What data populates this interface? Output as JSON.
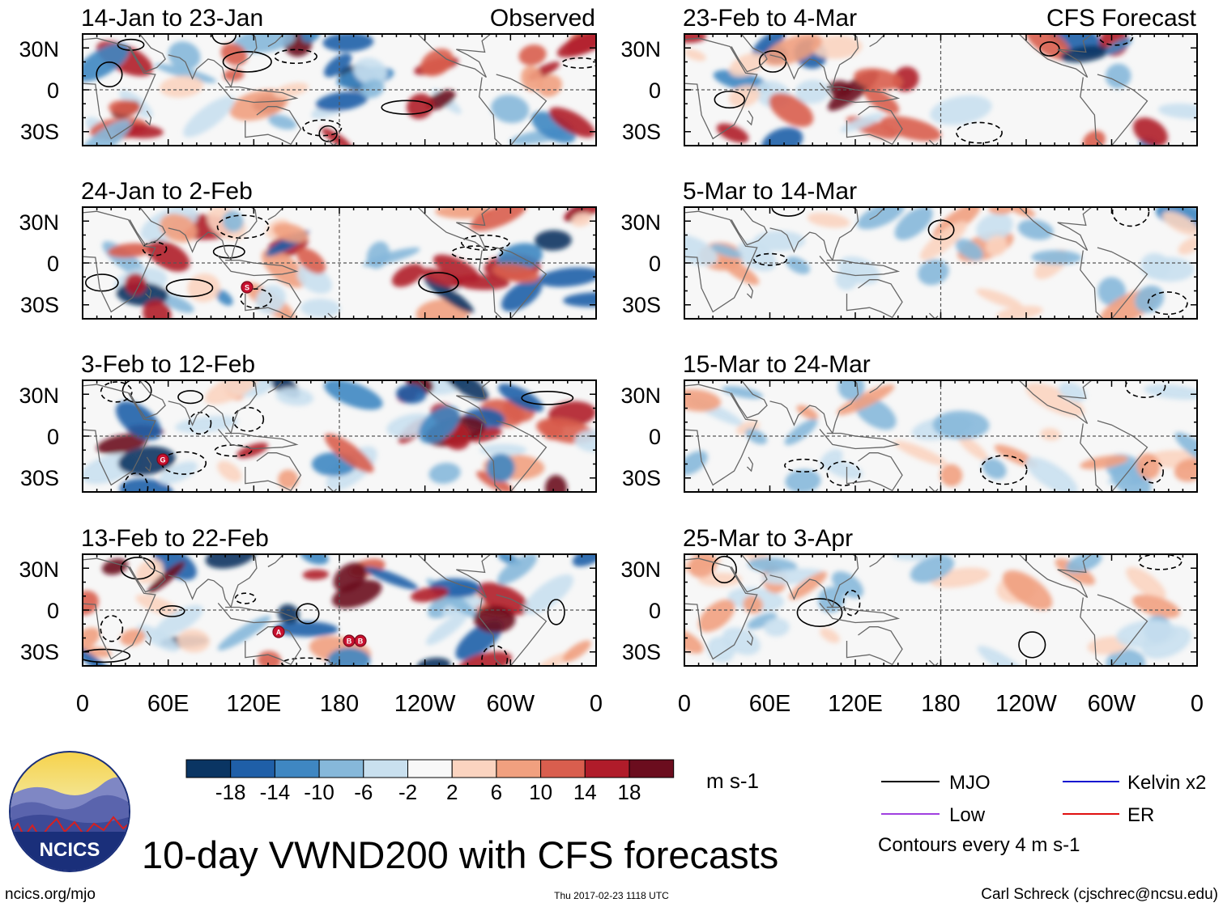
{
  "title": "10-day VWND200 with CFS forecasts",
  "left_column": {
    "label": "Observed",
    "panels": [
      {
        "period": "14-Jan to 23-Jan",
        "storms": []
      },
      {
        "period": "24-Jan to 2-Feb",
        "storms": [
          "S"
        ]
      },
      {
        "period": "3-Feb to 12-Feb",
        "storms": [
          "G"
        ]
      },
      {
        "period": "13-Feb to 22-Feb",
        "storms": [
          "A",
          "B",
          "B"
        ]
      }
    ]
  },
  "right_column": {
    "label": "CFS Forecast",
    "panels": [
      {
        "period": "23-Feb to 4-Mar"
      },
      {
        "period": "5-Mar to 14-Mar"
      },
      {
        "period": "15-Mar to 24-Mar"
      },
      {
        "period": "25-Mar to 3-Apr"
      }
    ]
  },
  "lat_labels": [
    "30N",
    "0",
    "30S"
  ],
  "lon_labels": [
    "0",
    "60E",
    "120E",
    "180",
    "120W",
    "60W",
    "0"
  ],
  "colorbar": {
    "ticks": [
      "-18",
      "-14",
      "-10",
      "-6",
      "-2",
      "2",
      "6",
      "10",
      "14",
      "18"
    ],
    "colors": [
      "#0a3563",
      "#1f5fa8",
      "#3f87c2",
      "#86b8da",
      "#c9e0ef",
      "#f8f8f8",
      "#fbd4c0",
      "#f1a07f",
      "#d95e4e",
      "#b01c2a",
      "#6b0d1e"
    ],
    "units": "m s-1"
  },
  "legend": {
    "items": [
      {
        "label": "MJO",
        "color": "#000000"
      },
      {
        "label": "Kelvin x2",
        "color": "#1010d0"
      },
      {
        "label": "Low",
        "color": "#a040e0"
      },
      {
        "label": "ER",
        "color": "#e01010"
      }
    ],
    "note": "Contours every 4 m s-1"
  },
  "logo": {
    "text": "NCICS"
  },
  "footer": {
    "url": "ncics.org/mjo",
    "timestamp": "Thu 2017-02-23 1118 UTC",
    "author": "Carl Schreck (cjschrec@ncsu.edu)"
  }
}
